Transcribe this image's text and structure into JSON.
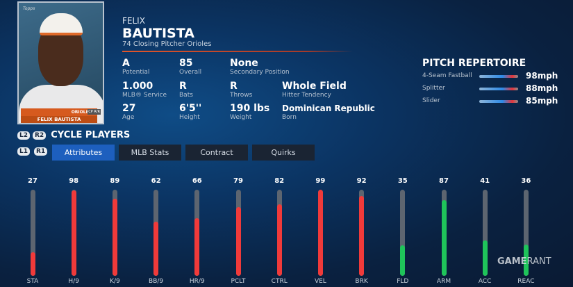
{
  "card": {
    "brand": "Topps",
    "team_band": "ORIOLES",
    "name": "FELIX BAUTISTA",
    "position": "CP R/R"
  },
  "player": {
    "first_name": "FELIX",
    "last_name": "BAUTISTA",
    "subtitle": "74  Closing Pitcher  Orioles"
  },
  "stats": [
    {
      "value": "A",
      "label": "Potential"
    },
    {
      "value": "85",
      "label": "Overall"
    },
    {
      "value": "None",
      "label": "Secondary Position"
    },
    {
      "value": "1.000",
      "label": "MLB® Service"
    },
    {
      "value": "R",
      "label": "Bats"
    },
    {
      "value": "R",
      "label": "Throws"
    },
    {
      "value": "Whole Field",
      "label": "Hitter Tendency"
    },
    {
      "value": "27",
      "label": "Age"
    },
    {
      "value": "6'5''",
      "label": "Height"
    },
    {
      "value": "190 lbs",
      "label": "Weight"
    },
    {
      "value": "Dominican Republic",
      "label": "Born"
    }
  ],
  "pitch_repertoire": {
    "title": "PITCH REPERTOIRE",
    "pitches": [
      {
        "name": "4-Seam Fastball",
        "speed": "98mph"
      },
      {
        "name": "Splitter",
        "speed": "88mph"
      },
      {
        "name": "Slider",
        "speed": "85mph"
      }
    ]
  },
  "cycle": {
    "l2": "L2",
    "r2": "R2",
    "label": "CYCLE PLAYERS",
    "l1": "L1",
    "r1": "R1"
  },
  "tabs": [
    {
      "label": "Attributes",
      "active": true
    },
    {
      "label": "MLB Stats"
    },
    {
      "label": "Contract"
    },
    {
      "label": "Quirks"
    }
  ],
  "colors": {
    "pitching_bar": "#f03a3a",
    "fielding_bar": "#1fc45a",
    "track": "#5d6570",
    "tab_active": "#1d5fbe"
  },
  "attributes": [
    {
      "label": "STA",
      "value": 27,
      "type": "pitching"
    },
    {
      "label": "H/9",
      "value": 98,
      "type": "pitching"
    },
    {
      "label": "K/9",
      "value": 89,
      "type": "pitching"
    },
    {
      "label": "BB/9",
      "value": 62,
      "type": "pitching"
    },
    {
      "label": "HR/9",
      "value": 66,
      "type": "pitching"
    },
    {
      "label": "PCLT",
      "value": 79,
      "type": "pitching"
    },
    {
      "label": "CTRL",
      "value": 82,
      "type": "pitching"
    },
    {
      "label": "VEL",
      "value": 99,
      "type": "pitching"
    },
    {
      "label": "BRK",
      "value": 92,
      "type": "pitching"
    },
    {
      "label": "FLD",
      "value": 35,
      "type": "fielding"
    },
    {
      "label": "ARM",
      "value": 87,
      "type": "fielding"
    },
    {
      "label": "ACC",
      "value": 41,
      "type": "fielding"
    },
    {
      "label": "REAC",
      "value": 36,
      "type": "fielding"
    }
  ],
  "watermark": "GAMERANT"
}
